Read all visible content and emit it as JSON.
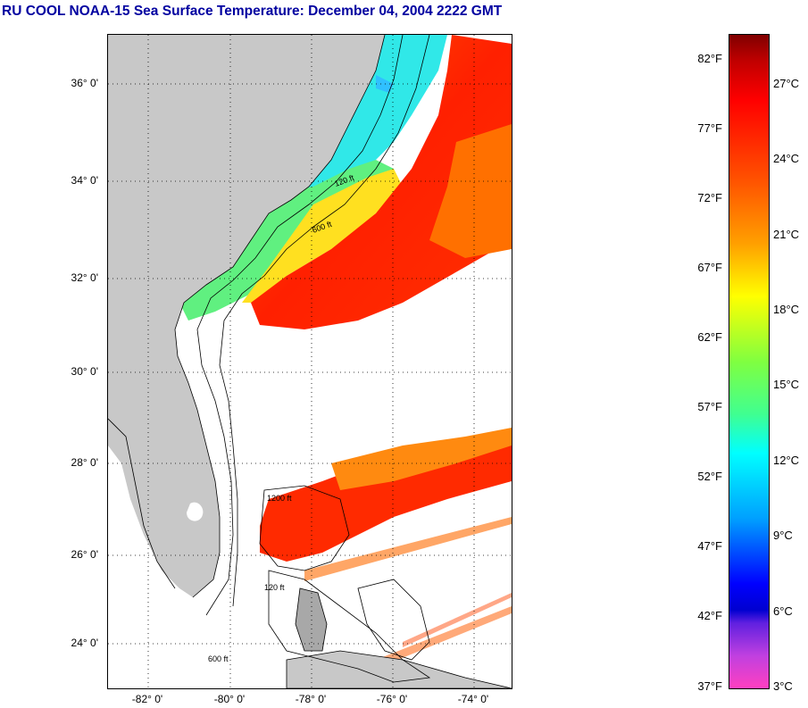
{
  "title": "RU COOL  NOAA-15  Sea Surface Temperature:  December 04, 2004 2222 GMT",
  "map": {
    "lat_labels": [
      "36° 0'",
      "34° 0'",
      "32° 0'",
      "30° 0'",
      "28° 0'",
      "26° 0'",
      "24° 0'"
    ],
    "lon_labels": [
      "-82° 0'",
      "-80° 0'",
      "-78° 0'",
      "-76° 0'",
      "-74° 0'"
    ],
    "lat_range": [
      23.0,
      37.1
    ],
    "lon_range": [
      -83.0,
      -73.0
    ],
    "isobath_labels": [
      "120 ft",
      "600 ft",
      "1200 ft",
      "600 ft",
      "120 ft"
    ],
    "land_color": "#c8c8c8",
    "grid": "dotted"
  },
  "colorbar": {
    "fahrenheit_labels": [
      "82°F",
      "77°F",
      "72°F",
      "67°F",
      "62°F",
      "57°F",
      "52°F",
      "47°F",
      "42°F",
      "37°F"
    ],
    "celsius_labels": [
      "27°C",
      "24°C",
      "21°C",
      "18°C",
      "15°C",
      "12°C",
      "9°C",
      "6°C",
      "3°C"
    ],
    "range_celsius": [
      2.8,
      28.5
    ]
  }
}
